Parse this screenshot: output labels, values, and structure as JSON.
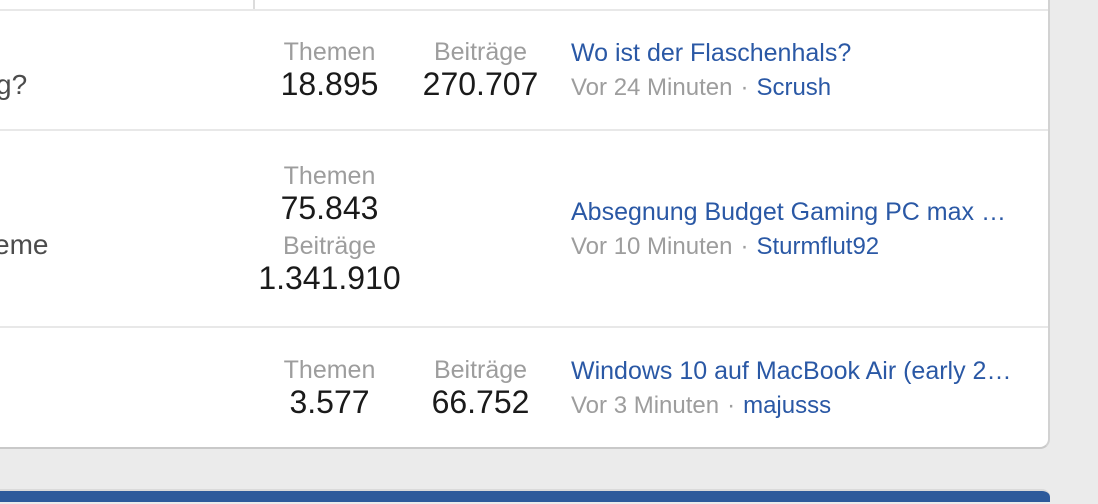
{
  "colors": {
    "link_blue": "#2a58a5",
    "footer_bar_blue": "#2d5a9b",
    "stat_label_gray": "#9d9d9d",
    "stat_value_black": "#1a1a1a",
    "forum_name_gray": "#4c4c4c",
    "page_background": "#ebebeb",
    "row_divider": "#e8e8e8"
  },
  "forum_table": {
    "rows": [
      {
        "name_fragment": "g?",
        "stats": [
          {
            "label": "Themen",
            "value": "18.895"
          },
          {
            "label": "Beiträge",
            "value": "270.707"
          }
        ],
        "latest": {
          "title": "Wo ist der Flaschenhals?",
          "time": "Vor 24 Minuten",
          "separator": "·",
          "user": "Scrush"
        }
      },
      {
        "name_fragment": "eme",
        "stats": [
          {
            "label": "Themen",
            "value": "75.843"
          },
          {
            "label": "Beiträge",
            "value": "1.341.910"
          }
        ],
        "latest": {
          "title": "Absegnung Budget Gaming PC max …",
          "time": "Vor 10 Minuten",
          "separator": "·",
          "user": "Sturmflut92"
        }
      },
      {
        "name_fragment": "",
        "stats": [
          {
            "label": "Themen",
            "value": "3.577"
          },
          {
            "label": "Beiträge",
            "value": "66.752"
          }
        ],
        "latest": {
          "title": "Windows 10 auf MacBook Air (early 2…",
          "time": "Vor 3 Minuten",
          "separator": "·",
          "user": "majusss"
        }
      }
    ]
  }
}
